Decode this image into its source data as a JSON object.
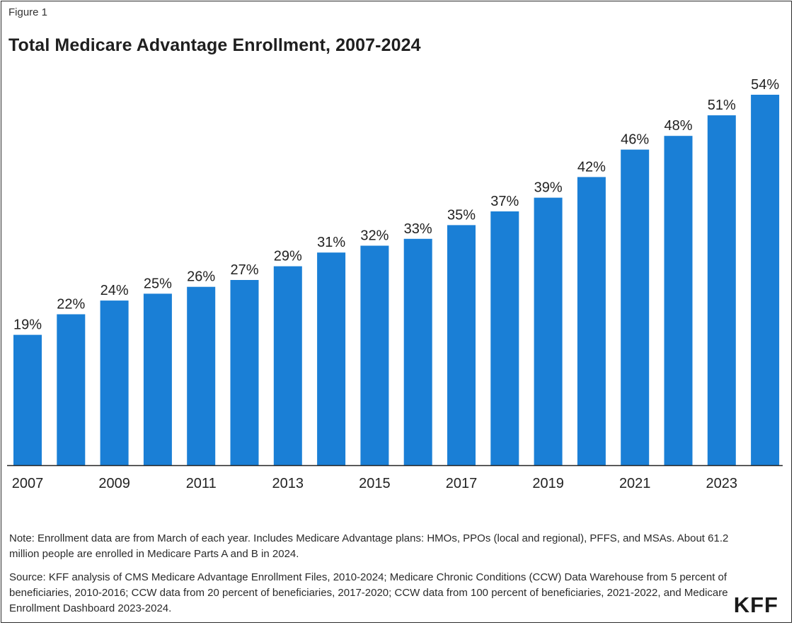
{
  "figure_label": "Figure 1",
  "colors": {
    "bar": "#1a7fd6",
    "axis": "#222222",
    "text": "#222222"
  },
  "chart_data": {
    "type": "bar",
    "title": "Total Medicare Advantage Enrollment, 2007-2024",
    "xlabel": "",
    "ylabel": "",
    "categories": [
      "2007",
      "2008",
      "2009",
      "2010",
      "2011",
      "2012",
      "2013",
      "2014",
      "2015",
      "2016",
      "2017",
      "2018",
      "2019",
      "2020",
      "2021",
      "2022",
      "2023",
      "2024"
    ],
    "values": [
      19,
      22,
      24,
      25,
      26,
      27,
      29,
      31,
      32,
      33,
      35,
      37,
      39,
      42,
      46,
      48,
      51,
      54
    ],
    "value_labels": [
      "19%",
      "22%",
      "24%",
      "25%",
      "26%",
      "27%",
      "29%",
      "31%",
      "32%",
      "33%",
      "35%",
      "37%",
      "39%",
      "42%",
      "46%",
      "48%",
      "51%",
      "54%"
    ],
    "x_tick_labels": [
      "2007",
      "",
      "2009",
      "",
      "2011",
      "",
      "2013",
      "",
      "2015",
      "",
      "2017",
      "",
      "2019",
      "",
      "2021",
      "",
      "2023",
      ""
    ],
    "ylim": [
      0,
      54
    ],
    "grid": false,
    "legend": "none"
  },
  "notes": {
    "note": "Note: Enrollment data are from March of each year. Includes Medicare Advantage plans: HMOs, PPOs (local and regional), PFFS, and MSAs. About 61.2 million people are enrolled in Medicare Parts A and B in 2024.",
    "source": "Source: KFF analysis of CMS Medicare Advantage Enrollment Files, 2010-2024; Medicare Chronic Conditions (CCW) Data Warehouse from 5 percent of beneficiaries, 2010-2016; CCW data from 20 percent of beneficiaries, 2017-2020; CCW data from 100 percent of beneficiaries, 2021-2022, and Medicare Enrollment Dashboard 2023-2024."
  },
  "logo_text": "KFF"
}
